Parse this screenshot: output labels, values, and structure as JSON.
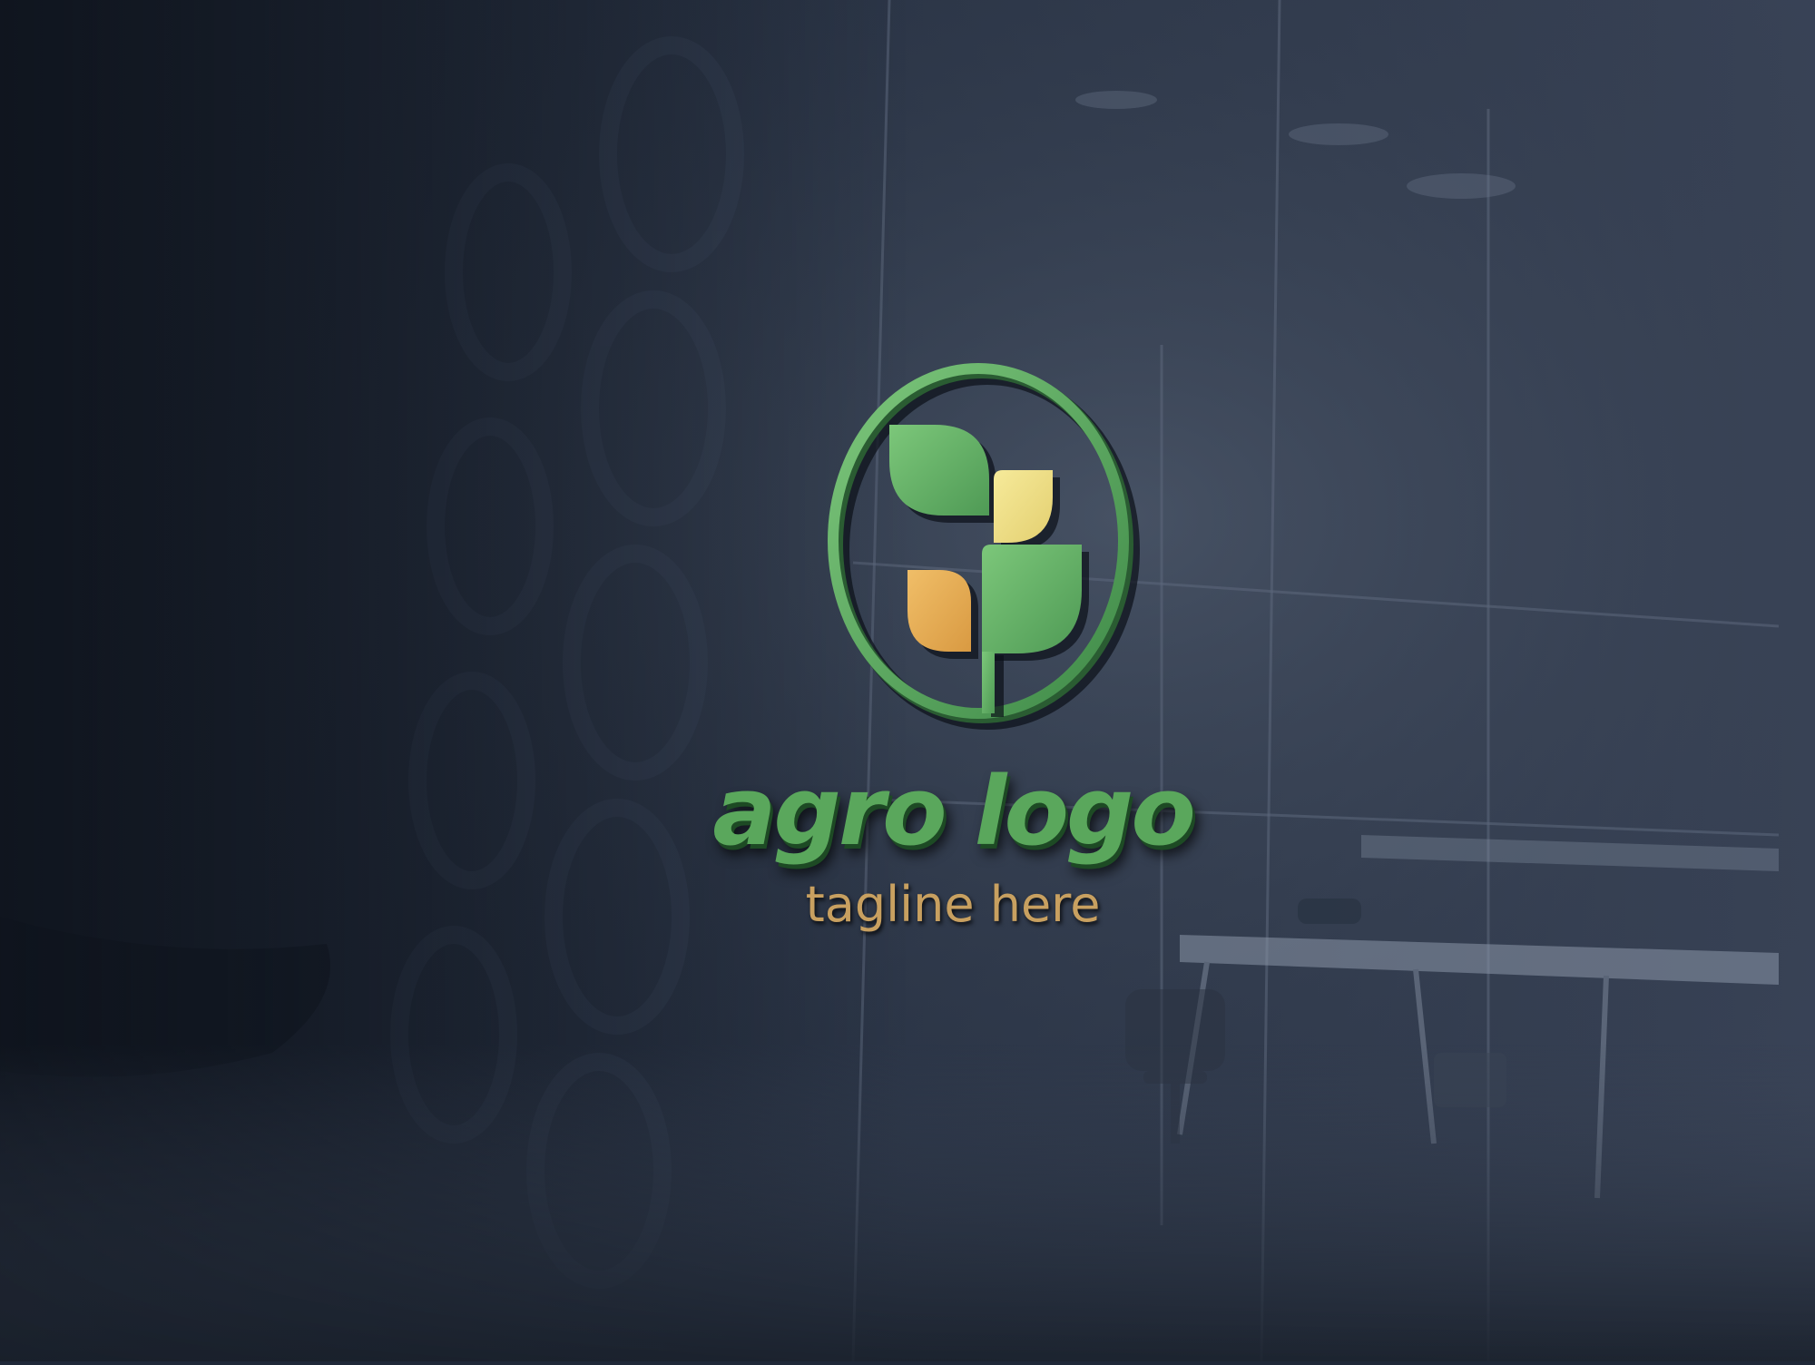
{
  "logo": {
    "name": "agro logo",
    "tagline": "tagline here"
  },
  "icons": {
    "emblem": "leaf-sprout-icon"
  },
  "colors": {
    "wall": "#1f2838",
    "leaf_green": "#68b868",
    "leaf_light_yellow": "#efe088",
    "leaf_orange": "#e0a850",
    "ring_green": "#5aa75c",
    "text_green": "#5aa75c",
    "tagline_gold": "#c8a060"
  }
}
